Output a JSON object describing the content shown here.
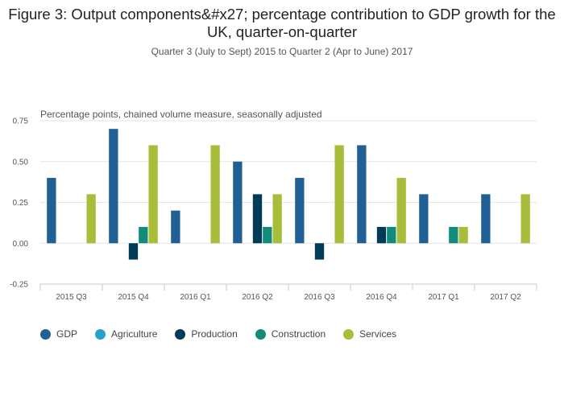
{
  "chart_data": {
    "type": "bar",
    "title": "Figure 3: Output components&#x27; percentage contribution to GDP growth for the UK, quarter-on-quarter",
    "subtitle": "Quarter 3 (July to Sept) 2015 to Quarter 2 (Apr to June) 2017",
    "ylabel": "Percentage points, chained volume measure, seasonally adjusted",
    "categories": [
      "2015 Q3",
      "2015 Q4",
      "2016 Q1",
      "2016 Q2",
      "2016 Q3",
      "2016 Q4",
      "2017 Q1",
      "2017 Q2"
    ],
    "ylim": [
      -0.25,
      0.75
    ],
    "yticks": [
      "0.75",
      "0.50",
      "0.25",
      "0.00",
      "-0.25"
    ],
    "ytick_values": [
      0.75,
      0.5,
      0.25,
      0,
      -0.25
    ],
    "grid": true,
    "legend_position": "bottom-left",
    "series": [
      {
        "name": "GDP",
        "color": "#206095",
        "values": [
          0.4,
          0.7,
          0.2,
          0.5,
          0.4,
          0.6,
          0.3,
          0.3
        ]
      },
      {
        "name": "Agriculture",
        "color": "#27a0cc",
        "values": [
          0,
          0,
          0,
          0,
          0,
          0,
          0,
          0
        ]
      },
      {
        "name": "Production",
        "color": "#003c57",
        "values": [
          0,
          -0.1,
          0,
          0.3,
          -0.1,
          0.1,
          0,
          0
        ]
      },
      {
        "name": "Construction",
        "color": "#118c7b",
        "values": [
          0,
          0.1,
          0,
          0.1,
          0,
          0.1,
          0.1,
          0
        ]
      },
      {
        "name": "Services",
        "color": "#a8bd3a",
        "values": [
          0.3,
          0.6,
          0.6,
          0.3,
          0.6,
          0.4,
          0.1,
          0.3
        ]
      }
    ]
  }
}
